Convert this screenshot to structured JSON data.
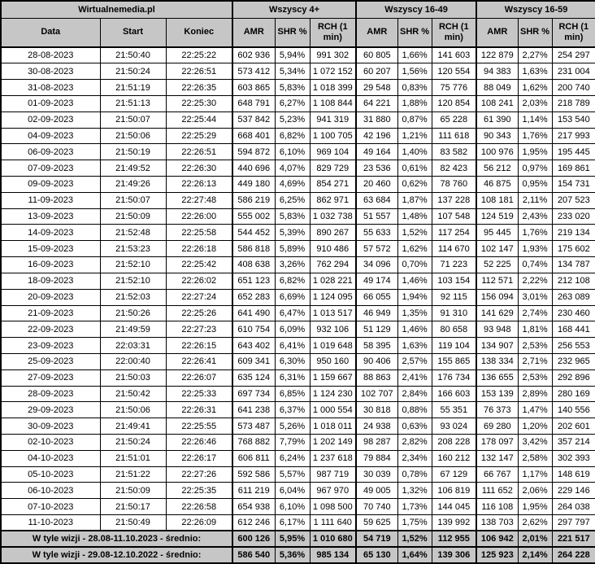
{
  "chart_data": {
    "type": "table",
    "title": "Wirtualnemedia.pl",
    "header": {
      "brand": "Wirtualnemedia.pl",
      "groups": [
        "Wszyscy 4+",
        "Wszyscy 16-49",
        "Wszyscy 16-59"
      ],
      "base_columns": [
        "Data",
        "Start",
        "Koniec"
      ],
      "group_columns": [
        "AMR",
        "SHR %",
        "RCH (1 min)"
      ]
    },
    "rows": [
      [
        "28-08-2023",
        "21:50:40",
        "22:25:22",
        "602 936",
        "5,94%",
        "991 302",
        "60 805",
        "1,66%",
        "141 603",
        "122 879",
        "2,27%",
        "254 297"
      ],
      [
        "30-08-2023",
        "21:50:24",
        "22:26:51",
        "573 412",
        "5,34%",
        "1 072 152",
        "60 207",
        "1,56%",
        "120 554",
        "94 383",
        "1,63%",
        "231 004"
      ],
      [
        "31-08-2023",
        "21:51:19",
        "22:26:35",
        "603 865",
        "5,83%",
        "1 018 399",
        "29 548",
        "0,83%",
        "75 776",
        "88 049",
        "1,62%",
        "200 740"
      ],
      [
        "01-09-2023",
        "21:51:13",
        "22:25:30",
        "648 791",
        "6,27%",
        "1 108 844",
        "64 221",
        "1,88%",
        "120 854",
        "108 241",
        "2,03%",
        "218 789"
      ],
      [
        "02-09-2023",
        "21:50:07",
        "22:25:44",
        "537 842",
        "5,23%",
        "941 319",
        "31 880",
        "0,87%",
        "65 228",
        "61 390",
        "1,14%",
        "153 540"
      ],
      [
        "04-09-2023",
        "21:50:06",
        "22:25:29",
        "668 401",
        "6,82%",
        "1 100 705",
        "42 196",
        "1,21%",
        "111 618",
        "90 343",
        "1,76%",
        "217 993"
      ],
      [
        "06-09-2023",
        "21:50:19",
        "22:26:51",
        "594 872",
        "6,10%",
        "969 104",
        "49 164",
        "1,40%",
        "83 582",
        "100 976",
        "1,95%",
        "195 445"
      ],
      [
        "07-09-2023",
        "21:49:52",
        "22:26:30",
        "440 696",
        "4,07%",
        "829 729",
        "23 536",
        "0,61%",
        "82 423",
        "56 212",
        "0,97%",
        "169 861"
      ],
      [
        "09-09-2023",
        "21:49:26",
        "22:26:13",
        "449 180",
        "4,69%",
        "854 271",
        "20 460",
        "0,62%",
        "78 760",
        "46 875",
        "0,95%",
        "154 731"
      ],
      [
        "11-09-2023",
        "21:50:07",
        "22:27:48",
        "586 219",
        "6,25%",
        "862 971",
        "63 684",
        "1,87%",
        "137 228",
        "108 181",
        "2,11%",
        "207 523"
      ],
      [
        "13-09-2023",
        "21:50:09",
        "22:26:00",
        "555 002",
        "5,83%",
        "1 032 738",
        "51 557",
        "1,48%",
        "107 548",
        "124 519",
        "2,43%",
        "233 020"
      ],
      [
        "14-09-2023",
        "21:52:48",
        "22:25:58",
        "544 452",
        "5,39%",
        "890 267",
        "55 633",
        "1,52%",
        "117 254",
        "95 445",
        "1,76%",
        "219 134"
      ],
      [
        "15-09-2023",
        "21:53:23",
        "22:26:18",
        "586 818",
        "5,89%",
        "910 486",
        "57 572",
        "1,62%",
        "114 670",
        "102 147",
        "1,93%",
        "175 602"
      ],
      [
        "16-09-2023",
        "21:52:10",
        "22:25:42",
        "408 638",
        "3,26%",
        "762 294",
        "34 096",
        "0,70%",
        "71 223",
        "52 225",
        "0,74%",
        "134 787"
      ],
      [
        "18-09-2023",
        "21:52:10",
        "22:26:02",
        "651 123",
        "6,82%",
        "1 028 221",
        "49 174",
        "1,46%",
        "103 154",
        "112 571",
        "2,22%",
        "212 108"
      ],
      [
        "20-09-2023",
        "21:52:03",
        "22:27:24",
        "652 283",
        "6,69%",
        "1 124 095",
        "66 055",
        "1,94%",
        "92 115",
        "156 094",
        "3,01%",
        "263 089"
      ],
      [
        "21-09-2023",
        "21:50:26",
        "22:25:26",
        "641 490",
        "6,47%",
        "1 013 517",
        "46 949",
        "1,35%",
        "91 310",
        "141 629",
        "2,74%",
        "230 460"
      ],
      [
        "22-09-2023",
        "21:49:59",
        "22:27:23",
        "610 754",
        "6,09%",
        "932 106",
        "51 129",
        "1,46%",
        "80 658",
        "93 948",
        "1,81%",
        "168 441"
      ],
      [
        "23-09-2023",
        "22:03:31",
        "22:26:15",
        "643 402",
        "6,41%",
        "1 019 648",
        "58 395",
        "1,63%",
        "119 104",
        "134 907",
        "2,53%",
        "256 553"
      ],
      [
        "25-09-2023",
        "22:00:40",
        "22:26:41",
        "609 341",
        "6,30%",
        "950 160",
        "90 406",
        "2,57%",
        "155 865",
        "138 334",
        "2,71%",
        "232 965"
      ],
      [
        "27-09-2023",
        "21:50:03",
        "22:26:07",
        "635 124",
        "6,31%",
        "1 159 667",
        "88 863",
        "2,41%",
        "176 734",
        "136 655",
        "2,53%",
        "292 896"
      ],
      [
        "28-09-2023",
        "21:50:42",
        "22:25:33",
        "697 734",
        "6,85%",
        "1 124 230",
        "102 707",
        "2,84%",
        "166 603",
        "153 139",
        "2,89%",
        "280 169"
      ],
      [
        "29-09-2023",
        "21:50:06",
        "22:26:31",
        "641 238",
        "6,37%",
        "1 000 554",
        "30 818",
        "0,88%",
        "55 351",
        "76 373",
        "1,47%",
        "140 556"
      ],
      [
        "30-09-2023",
        "21:49:41",
        "22:25:55",
        "573 487",
        "5,26%",
        "1 018 011",
        "24 938",
        "0,63%",
        "93 024",
        "69 280",
        "1,20%",
        "202 601"
      ],
      [
        "02-10-2023",
        "21:50:24",
        "22:26:46",
        "768 882",
        "7,79%",
        "1 202 149",
        "98 287",
        "2,82%",
        "208 228",
        "178 097",
        "3,42%",
        "357 214"
      ],
      [
        "04-10-2023",
        "21:51:01",
        "22:26:17",
        "606 811",
        "6,24%",
        "1 237 618",
        "79 884",
        "2,34%",
        "160 212",
        "132 147",
        "2,58%",
        "302 393"
      ],
      [
        "05-10-2023",
        "21:51:22",
        "22:27:26",
        "592 586",
        "5,57%",
        "987 719",
        "30 039",
        "0,78%",
        "67 129",
        "66 767",
        "1,17%",
        "148 619"
      ],
      [
        "06-10-2023",
        "21:50:09",
        "22:25:35",
        "611 219",
        "6,04%",
        "967 970",
        "49 005",
        "1,32%",
        "106 819",
        "111 652",
        "2,06%",
        "229 146"
      ],
      [
        "07-10-2023",
        "21:50:17",
        "22:26:58",
        "654 938",
        "6,10%",
        "1 098 500",
        "70 740",
        "1,73%",
        "144 045",
        "116 108",
        "1,95%",
        "264 038"
      ],
      [
        "11-10-2023",
        "21:50:49",
        "22:26:09",
        "612 246",
        "6,17%",
        "1 111 640",
        "59 625",
        "1,75%",
        "139 992",
        "138 703",
        "2,62%",
        "297 797"
      ]
    ],
    "summary_rows": [
      {
        "label": "W tyle wizji - 28.08-11.10.2023 - średnio:",
        "values": [
          "600 126",
          "5,95%",
          "1 010 680",
          "54 719",
          "1,52%",
          "112 955",
          "106 942",
          "2,01%",
          "221 517"
        ]
      },
      {
        "label": "W tyle wizji - 29.08-12.10.2022 - średnio:",
        "values": [
          "586 540",
          "5,36%",
          "985 134",
          "65 130",
          "1,64%",
          "139 306",
          "125 923",
          "2,14%",
          "264 228"
        ]
      }
    ],
    "colors": {
      "header_bg": "#c6c6c6",
      "row_bg": "#ffffff",
      "border": "#000000"
    }
  }
}
